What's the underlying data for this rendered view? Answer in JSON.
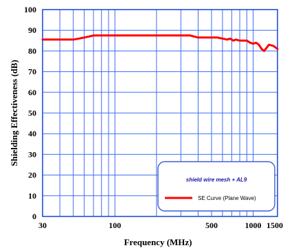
{
  "chart_data": {
    "type": "line",
    "xlabel": "Frequency (MHz)",
    "ylabel": "Shielding Effectiveness (dB)",
    "xscale": "log",
    "xlim": [
      30,
      1500
    ],
    "ylim": [
      0,
      100
    ],
    "x_ticks": [
      {
        "value": 30,
        "label": "30"
      },
      {
        "value": 100,
        "label": "100"
      },
      {
        "value": 500,
        "label": "500"
      },
      {
        "value": 1000,
        "label": "1000"
      },
      {
        "value": 1500,
        "label": "1500"
      }
    ],
    "y_ticks": [
      0,
      10,
      20,
      30,
      40,
      50,
      60,
      70,
      80,
      90,
      100
    ],
    "x_gridlines": [
      30,
      40,
      50,
      60,
      70,
      80,
      90,
      100,
      200,
      300,
      400,
      500,
      600,
      700,
      800,
      900,
      1000,
      1500
    ],
    "grid": true,
    "legend": {
      "title": "shield wire mesh + AL9",
      "placement": "bottom-right"
    },
    "series": [
      {
        "name": "SE Curve (Plane Wave)",
        "color": "#ff0000",
        "x": [
          30,
          35,
          40,
          50,
          55,
          60,
          65,
          70,
          80,
          100,
          150,
          200,
          300,
          350,
          400,
          500,
          550,
          600,
          650,
          680,
          720,
          750,
          800,
          850,
          900,
          950,
          1000,
          1050,
          1100,
          1150,
          1200,
          1300,
          1400,
          1500
        ],
        "y": [
          85.5,
          85.5,
          85.5,
          85.5,
          86,
          86.5,
          87,
          87.5,
          87.5,
          87.5,
          87.5,
          87.5,
          87.5,
          87.5,
          86.5,
          86.5,
          86.5,
          86,
          85.5,
          86,
          85,
          85.5,
          85,
          85,
          85,
          84,
          83.5,
          84,
          83,
          81,
          80,
          83,
          82.5,
          81
        ]
      }
    ]
  }
}
